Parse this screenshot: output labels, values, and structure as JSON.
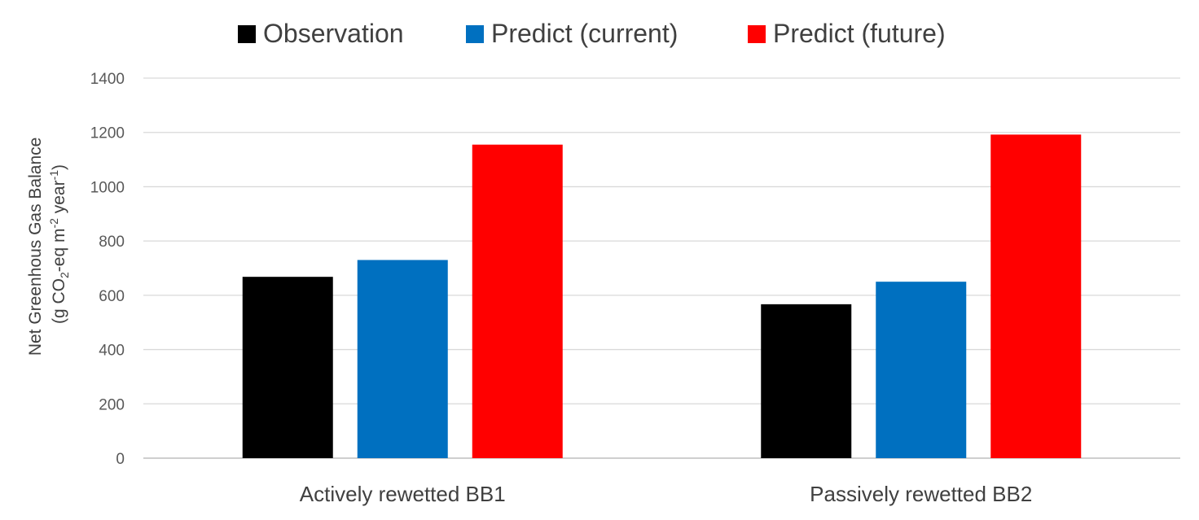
{
  "chart_data": {
    "type": "bar",
    "categories": [
      "Actively rewetted BB1",
      "Passively rewetted BB2"
    ],
    "series": [
      {
        "name": "Observation",
        "color": "#000000",
        "values": [
          668,
          567
        ]
      },
      {
        "name": "Predict (current)",
        "color": "#0070c0",
        "values": [
          730,
          650
        ]
      },
      {
        "name": "Predict (future)",
        "color": "#ff0000",
        "values": [
          1155,
          1192
        ]
      }
    ],
    "title": "",
    "xlabel": "",
    "ylabel": {
      "line1": "Net Greenhous Gas Balance",
      "line2_prefix": "(g CO",
      "line2_sub": "2",
      "line2_mid": "-eq m",
      "line2_sup1": "-2",
      "line2_mid2": " year",
      "line2_sup2": "-1",
      "line2_suffix": ")"
    },
    "ylim": [
      0,
      1400
    ],
    "yticks": [
      "0",
      "200",
      "400",
      "600",
      "800",
      "1000",
      "1200",
      "1400"
    ],
    "grid": true,
    "legend_position": "top"
  }
}
